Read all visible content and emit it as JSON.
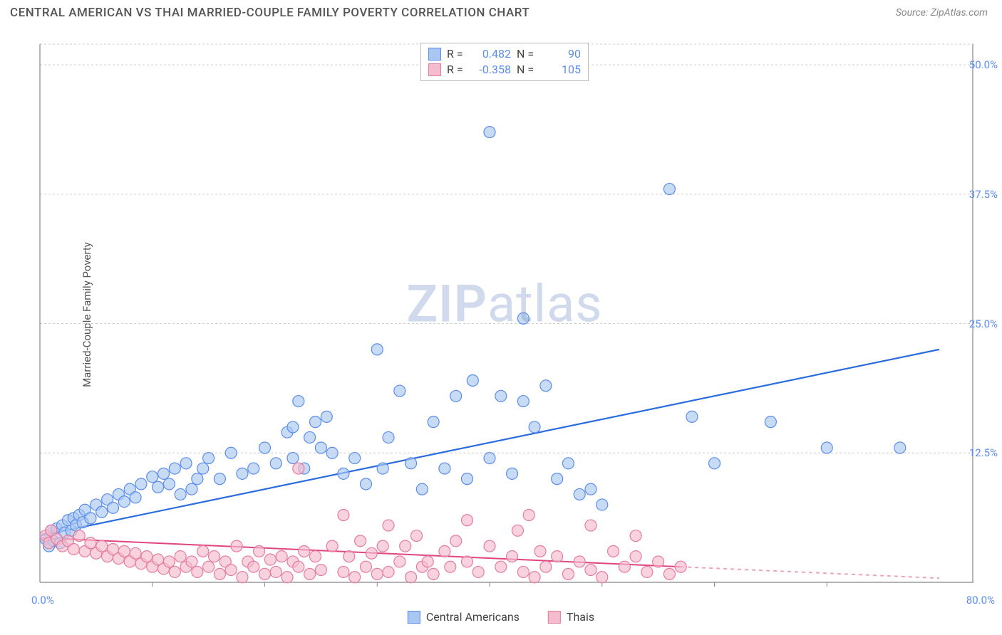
{
  "title": "CENTRAL AMERICAN VS THAI MARRIED-COUPLE FAMILY POVERTY CORRELATION CHART",
  "source_prefix": "Source: ",
  "source": "ZipAtlas.com",
  "ylabel": "Married-Couple Family Poverty",
  "watermark_a": "ZIP",
  "watermark_b": "atlas",
  "chart": {
    "type": "scatter",
    "xlim": [
      0,
      80
    ],
    "ylim": [
      0,
      52
    ],
    "xtick_step": 10,
    "yticks": [
      12.5,
      25.0,
      37.5,
      50.0
    ],
    "ytick_labels": [
      "12.5%",
      "25.0%",
      "37.5%",
      "50.0%"
    ],
    "x_origin_label": "0.0%",
    "x_max_label": "80.0%",
    "background_color": "#ffffff",
    "grid_color": "#cccccc",
    "axis_color": "#888888",
    "marker_radius": 8,
    "marker_stroke_width": 1.2,
    "series": [
      {
        "id": "central_americans",
        "label": "Central Americans",
        "color_fill": "#a9c7f0",
        "color_stroke": "#5b8def",
        "trend": {
          "x1": 0,
          "y1": 4.5,
          "x2": 80,
          "y2": 22.5,
          "dash_from_x": 80,
          "color": "#2a6be0",
          "width": 2.2
        },
        "points": [
          [
            0.5,
            4.2
          ],
          [
            0.8,
            3.5
          ],
          [
            1.0,
            5.0
          ],
          [
            1.2,
            4.0
          ],
          [
            1.5,
            5.2
          ],
          [
            1.8,
            3.8
          ],
          [
            2.0,
            5.5
          ],
          [
            2.2,
            4.8
          ],
          [
            2.5,
            6.0
          ],
          [
            2.8,
            5.0
          ],
          [
            3.0,
            6.2
          ],
          [
            3.2,
            5.5
          ],
          [
            3.5,
            6.5
          ],
          [
            3.8,
            5.8
          ],
          [
            4.0,
            7.0
          ],
          [
            4.5,
            6.2
          ],
          [
            5.0,
            7.5
          ],
          [
            5.5,
            6.8
          ],
          [
            6.0,
            8.0
          ],
          [
            6.5,
            7.2
          ],
          [
            7.0,
            8.5
          ],
          [
            7.5,
            7.8
          ],
          [
            8.0,
            9.0
          ],
          [
            8.5,
            8.2
          ],
          [
            9.0,
            9.5
          ],
          [
            10.0,
            10.2
          ],
          [
            10.5,
            9.2
          ],
          [
            11.0,
            10.5
          ],
          [
            11.5,
            9.5
          ],
          [
            12.0,
            11.0
          ],
          [
            12.5,
            8.5
          ],
          [
            13.0,
            11.5
          ],
          [
            13.5,
            9.0
          ],
          [
            14.0,
            10.0
          ],
          [
            14.5,
            11.0
          ],
          [
            15.0,
            12.0
          ],
          [
            16.0,
            10.0
          ],
          [
            17.0,
            12.5
          ],
          [
            18.0,
            10.5
          ],
          [
            19.0,
            11.0
          ],
          [
            20.0,
            13.0
          ],
          [
            21.0,
            11.5
          ],
          [
            22.0,
            14.5
          ],
          [
            22.5,
            12.0
          ],
          [
            22.5,
            15.0
          ],
          [
            23.0,
            17.5
          ],
          [
            23.5,
            11.0
          ],
          [
            24.0,
            14.0
          ],
          [
            24.5,
            15.5
          ],
          [
            25.0,
            13.0
          ],
          [
            25.5,
            16.0
          ],
          [
            26.0,
            12.5
          ],
          [
            27.0,
            10.5
          ],
          [
            28.0,
            12.0
          ],
          [
            29.0,
            9.5
          ],
          [
            30.0,
            22.5
          ],
          [
            30.5,
            11.0
          ],
          [
            31.0,
            14.0
          ],
          [
            32.0,
            18.5
          ],
          [
            33.0,
            11.5
          ],
          [
            34.0,
            9.0
          ],
          [
            35.0,
            15.5
          ],
          [
            36.0,
            11.0
          ],
          [
            37.0,
            18.0
          ],
          [
            38.0,
            10.0
          ],
          [
            38.5,
            19.5
          ],
          [
            40.0,
            43.5
          ],
          [
            40.0,
            12.0
          ],
          [
            41.0,
            18.0
          ],
          [
            42.0,
            10.5
          ],
          [
            43.0,
            17.5
          ],
          [
            43.0,
            25.5
          ],
          [
            44.0,
            15.0
          ],
          [
            45.0,
            19.0
          ],
          [
            46.0,
            10.0
          ],
          [
            47.0,
            11.5
          ],
          [
            48.0,
            8.5
          ],
          [
            49.0,
            9.0
          ],
          [
            50.0,
            7.5
          ],
          [
            56.0,
            38.0
          ],
          [
            58.0,
            16.0
          ],
          [
            60.0,
            11.5
          ],
          [
            65.0,
            15.5
          ],
          [
            70.0,
            13.0
          ],
          [
            76.5,
            13.0
          ]
        ],
        "stats": {
          "R": "0.482",
          "N": "90"
        }
      },
      {
        "id": "thais",
        "label": "Thais",
        "color_fill": "#f5bccd",
        "color_stroke": "#e67ba0",
        "trend": {
          "x1": 0,
          "y1": 4.3,
          "x2": 57,
          "y2": 1.5,
          "dash_from_x": 57,
          "dash_to_x": 80,
          "dash_to_y": 0.4,
          "color": "#e0457f",
          "width": 2.0
        },
        "points": [
          [
            0.5,
            4.5
          ],
          [
            0.8,
            3.8
          ],
          [
            1.0,
            5.0
          ],
          [
            1.5,
            4.2
          ],
          [
            2.0,
            3.5
          ],
          [
            2.5,
            4.0
          ],
          [
            3.0,
            3.2
          ],
          [
            3.5,
            4.5
          ],
          [
            4.0,
            3.0
          ],
          [
            4.5,
            3.8
          ],
          [
            5.0,
            2.8
          ],
          [
            5.5,
            3.5
          ],
          [
            6.0,
            2.5
          ],
          [
            6.5,
            3.2
          ],
          [
            7.0,
            2.3
          ],
          [
            7.5,
            3.0
          ],
          [
            8.0,
            2.0
          ],
          [
            8.5,
            2.8
          ],
          [
            9.0,
            1.8
          ],
          [
            9.5,
            2.5
          ],
          [
            10.0,
            1.5
          ],
          [
            10.5,
            2.2
          ],
          [
            11.0,
            1.3
          ],
          [
            11.5,
            2.0
          ],
          [
            12.0,
            1.0
          ],
          [
            12.5,
            2.5
          ],
          [
            13.0,
            1.5
          ],
          [
            13.5,
            2.0
          ],
          [
            14.0,
            1.0
          ],
          [
            14.5,
            3.0
          ],
          [
            15.0,
            1.5
          ],
          [
            15.5,
            2.5
          ],
          [
            16.0,
            0.8
          ],
          [
            16.5,
            2.0
          ],
          [
            17.0,
            1.2
          ],
          [
            17.5,
            3.5
          ],
          [
            18.0,
            0.5
          ],
          [
            18.5,
            2.0
          ],
          [
            19.0,
            1.5
          ],
          [
            19.5,
            3.0
          ],
          [
            20.0,
            0.8
          ],
          [
            20.5,
            2.2
          ],
          [
            21.0,
            1.0
          ],
          [
            21.5,
            2.5
          ],
          [
            22.0,
            0.5
          ],
          [
            22.5,
            2.0
          ],
          [
            23.0,
            11.0
          ],
          [
            23.0,
            1.5
          ],
          [
            23.5,
            3.0
          ],
          [
            24.0,
            0.8
          ],
          [
            24.5,
            2.5
          ],
          [
            25.0,
            1.2
          ],
          [
            26.0,
            3.5
          ],
          [
            27.0,
            6.5
          ],
          [
            27.0,
            1.0
          ],
          [
            27.5,
            2.5
          ],
          [
            28.0,
            0.5
          ],
          [
            28.5,
            4.0
          ],
          [
            29.0,
            1.5
          ],
          [
            29.5,
            2.8
          ],
          [
            30.0,
            0.8
          ],
          [
            30.5,
            3.5
          ],
          [
            31.0,
            5.5
          ],
          [
            31.0,
            1.0
          ],
          [
            32.0,
            2.0
          ],
          [
            32.5,
            3.5
          ],
          [
            33.0,
            0.5
          ],
          [
            33.5,
            4.5
          ],
          [
            34.0,
            1.5
          ],
          [
            34.5,
            2.0
          ],
          [
            35.0,
            0.8
          ],
          [
            36.0,
            3.0
          ],
          [
            36.5,
            1.5
          ],
          [
            37.0,
            4.0
          ],
          [
            38.0,
            6.0
          ],
          [
            38.0,
            2.0
          ],
          [
            39.0,
            1.0
          ],
          [
            40.0,
            3.5
          ],
          [
            41.0,
            1.5
          ],
          [
            42.0,
            2.5
          ],
          [
            42.5,
            5.0
          ],
          [
            43.0,
            1.0
          ],
          [
            43.5,
            6.5
          ],
          [
            44.0,
            0.5
          ],
          [
            44.5,
            3.0
          ],
          [
            45.0,
            1.5
          ],
          [
            46.0,
            2.5
          ],
          [
            47.0,
            0.8
          ],
          [
            48.0,
            2.0
          ],
          [
            49.0,
            5.5
          ],
          [
            49.0,
            1.2
          ],
          [
            50.0,
            0.5
          ],
          [
            51.0,
            3.0
          ],
          [
            52.0,
            1.5
          ],
          [
            53.0,
            2.5
          ],
          [
            53.0,
            4.5
          ],
          [
            54.0,
            1.0
          ],
          [
            55.0,
            2.0
          ],
          [
            56.0,
            0.8
          ],
          [
            57.0,
            1.5
          ]
        ],
        "stats": {
          "R": "-0.358",
          "N": "105"
        }
      }
    ]
  },
  "legend": {
    "r_label": "R =",
    "n_label": "N ="
  }
}
